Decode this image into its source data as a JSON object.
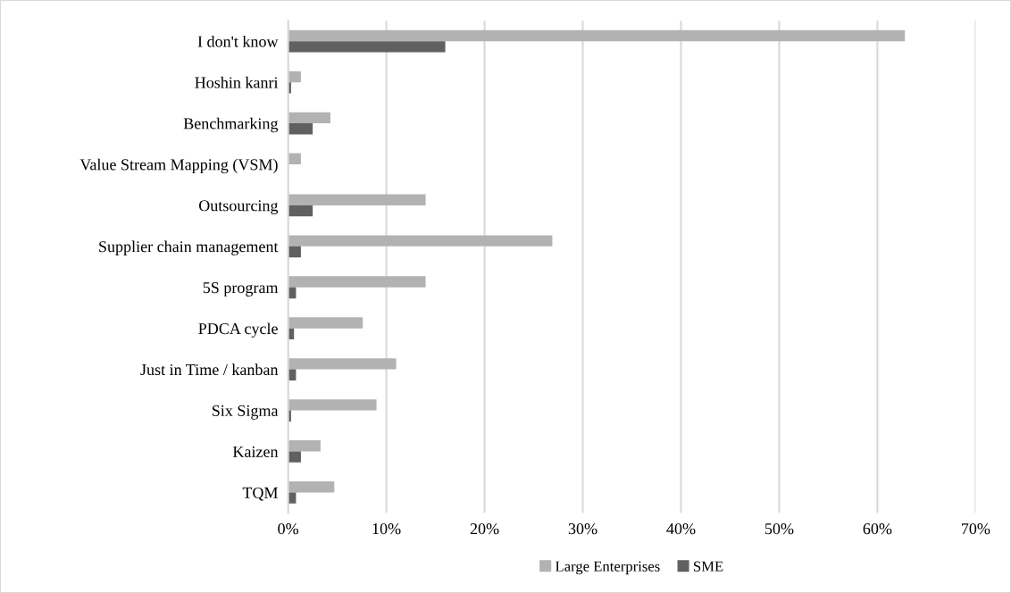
{
  "chart_data": {
    "type": "bar",
    "orientation": "horizontal",
    "categories": [
      "I don't know",
      "Hoshin kanri",
      "Benchmarking",
      "Value Stream Mapping (VSM)",
      "Outsourcing",
      "Supplier chain management",
      "5S program",
      "PDCA cycle",
      "Just in Time / kanban",
      "Six Sigma",
      "Kaizen",
      "TQM"
    ],
    "series": [
      {
        "name": "Large Enterprises",
        "color": "#b2b2b2",
        "values": [
          62.8,
          1.3,
          4.3,
          1.3,
          14.0,
          26.9,
          14.0,
          7.6,
          11.0,
          9.0,
          3.3,
          4.7
        ]
      },
      {
        "name": "SME",
        "color": "#606060",
        "values": [
          16.0,
          0.3,
          2.5,
          0,
          2.5,
          1.3,
          0.8,
          0.6,
          0.8,
          0.3,
          1.3,
          0.8
        ]
      }
    ],
    "xlim": [
      0,
      70
    ],
    "xticks": [
      {
        "value": 0,
        "label": "0%"
      },
      {
        "value": 10,
        "label": "10%"
      },
      {
        "value": 20,
        "label": "20%"
      },
      {
        "value": 30,
        "label": "30%"
      },
      {
        "value": 40,
        "label": "40%"
      },
      {
        "value": 50,
        "label": "50%"
      },
      {
        "value": 60,
        "label": "60%"
      },
      {
        "value": 70,
        "label": "70%"
      }
    ],
    "grid": "x",
    "legend": "bottom"
  }
}
